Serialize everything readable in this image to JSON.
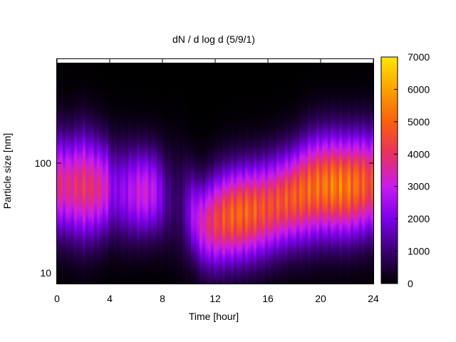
{
  "chart_data": {
    "type": "heatmap",
    "title": "dN / d log d (5/9/1)",
    "xlabel": "Time [hour]",
    "ylabel": "Particle size [nm]",
    "x_range": [
      0,
      24
    ],
    "x_ticks": [
      0,
      4,
      8,
      12,
      16,
      20,
      24
    ],
    "x_tick_labels": [
      "0",
      "4",
      "8",
      "12",
      "16",
      "20",
      "24"
    ],
    "y_scale": "log",
    "y_range": [
      8,
      900
    ],
    "y_ticks": [
      10,
      100
    ],
    "y_tick_labels": [
      "10",
      "100"
    ],
    "colorbar": {
      "range": [
        0,
        7000
      ],
      "ticks": [
        0,
        1000,
        2000,
        3000,
        4000,
        5000,
        6000,
        7000
      ],
      "tick_labels": [
        "0",
        "1000",
        "2000",
        "3000",
        "4000",
        "5000",
        "6000",
        "7000"
      ],
      "colormap": [
        "#000000",
        "#3a0070",
        "#7a00e8",
        "#c81cf0",
        "#e83060",
        "#f86010",
        "#fca000",
        "#fce800"
      ]
    },
    "profile_time_h": [
      0,
      1,
      2,
      3,
      3.8,
      4.2,
      5,
      6.5,
      7.5,
      8.3,
      9,
      9.5,
      10.2,
      11,
      12,
      13,
      14,
      15,
      16,
      17,
      18,
      19,
      20,
      21,
      22,
      23,
      24
    ],
    "peak_diameter_nm": [
      65,
      62,
      62,
      60,
      60,
      58,
      55,
      55,
      55,
      50,
      45,
      40,
      35,
      28,
      30,
      33,
      35,
      37,
      40,
      45,
      50,
      57,
      62,
      63,
      62,
      65,
      67
    ],
    "peak_concentration": [
      3600,
      3700,
      4000,
      3700,
      3200,
      2100,
      2300,
      3200,
      2700,
      1300,
      900,
      1000,
      2400,
      3300,
      4200,
      4800,
      5000,
      4800,
      4500,
      4600,
      4800,
      5000,
      5200,
      5400,
      5300,
      5000,
      4300
    ],
    "distribution_width_log10": [
      0.32,
      0.32,
      0.34,
      0.32,
      0.3,
      0.3,
      0.3,
      0.28,
      0.28,
      0.3,
      0.35,
      0.35,
      0.28,
      0.28,
      0.3,
      0.3,
      0.3,
      0.3,
      0.3,
      0.3,
      0.3,
      0.32,
      0.32,
      0.32,
      0.32,
      0.32,
      0.32
    ]
  }
}
